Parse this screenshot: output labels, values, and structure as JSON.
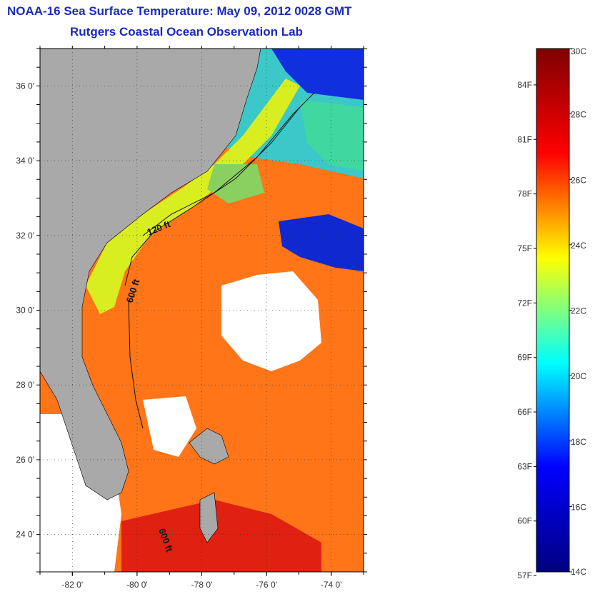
{
  "header": {
    "title": "NOAA-16 Sea Surface Temperature:  May 09, 2012 0028 GMT",
    "subtitle": "Rutgers Coastal Ocean Observation Lab"
  },
  "map": {
    "lon_range": [
      -83,
      -73
    ],
    "lat_range": [
      23,
      37
    ],
    "x_ticks": [
      "-82 0'",
      "-80 0'",
      "-78 0'",
      "-76 0'",
      "-74 0'"
    ],
    "x_tick_values": [
      -82,
      -80,
      -78,
      -76,
      -74
    ],
    "y_ticks": [
      "36 0'",
      "34 0'",
      "32 0'",
      "30 0'",
      "28 0'",
      "26 0'",
      "24 0'"
    ],
    "y_tick_values": [
      36,
      34,
      32,
      30,
      28,
      26,
      24
    ],
    "grid": "dotted",
    "contours": [
      "120 ft",
      "600 ft",
      "600 ft"
    ],
    "colors": {
      "land": "#a9a9a9",
      "cloud": "#ffffff"
    }
  },
  "colorbar": {
    "celsius_labels": [
      "30C",
      "28C",
      "26C",
      "24C",
      "22C",
      "20C",
      "18C",
      "16C",
      "14C"
    ],
    "celsius_values": [
      30,
      28,
      26,
      24,
      22,
      20,
      18,
      16,
      14
    ],
    "fahrenheit_labels": [
      "84F",
      "81F",
      "78F",
      "75F",
      "72F",
      "69F",
      "66F",
      "63F",
      "60F",
      "57F"
    ],
    "fahrenheit_values": [
      84,
      81,
      78,
      75,
      72,
      69,
      66,
      63,
      60,
      57
    ],
    "range_c": [
      14,
      30
    ],
    "colormap": "jet",
    "colormap_stops": [
      "#00007f",
      "#0000ff",
      "#00ffff",
      "#ffff00",
      "#ff0000",
      "#7f0000"
    ]
  }
}
